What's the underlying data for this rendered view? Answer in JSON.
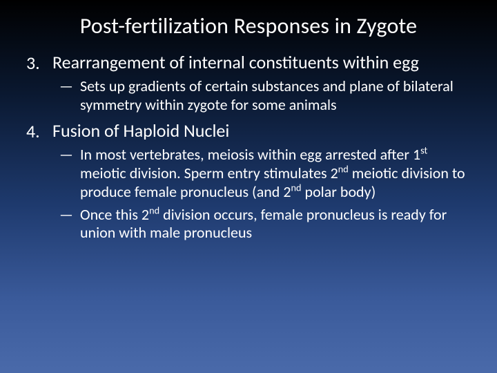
{
  "slide": {
    "title": "Post-fertilization Responses in Zygote",
    "points": [
      {
        "num": "3.",
        "text": "Rearrangement of internal constituents within egg",
        "subs": [
          {
            "dash": "—",
            "html": "Sets up gradients of certain substances and plane of bilateral symmetry within zygote for some animals"
          }
        ]
      },
      {
        "num": "4.",
        "text": "Fusion of Haploid Nuclei",
        "subs": [
          {
            "dash": "—",
            "html": "In most vertebrates, meiosis within egg arrested after 1<sup>st</sup> meiotic division. Sperm entry stimulates 2<sup>nd</sup> meiotic division to produce female pronucleus (and 2<sup>nd</sup> polar body)"
          },
          {
            "dash": "—",
            "html": "Once this 2<sup>nd</sup> division occurs, female pronucleus is ready for union with male pronucleus"
          }
        ]
      }
    ],
    "colors": {
      "background_top": "#000000",
      "background_bottom": "#4a6aaa",
      "text": "#ffffff"
    },
    "typography": {
      "title_fontsize": 32,
      "point_fontsize": 26,
      "sub_fontsize": 22,
      "font_family": "Calibri"
    }
  }
}
